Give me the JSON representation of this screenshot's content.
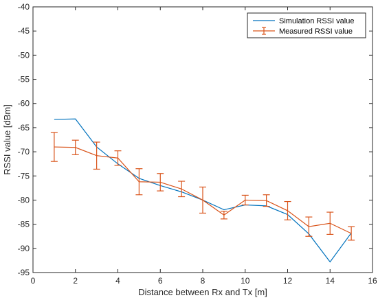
{
  "chart_data": {
    "type": "line",
    "title": "",
    "xlabel": "Distance between Rx and Tx [m]",
    "ylabel": "RSSI value [dBm]",
    "xlim": [
      0,
      16
    ],
    "ylim": [
      -95,
      -40
    ],
    "xticks": [
      0,
      2,
      4,
      6,
      8,
      10,
      12,
      14,
      16
    ],
    "yticks": [
      -95,
      -90,
      -85,
      -80,
      -75,
      -70,
      -65,
      -60,
      -55,
      -50,
      -45,
      -40
    ],
    "xtick_labels": [
      "0",
      "2",
      "4",
      "6",
      "8",
      "10",
      "12",
      "14",
      "16"
    ],
    "ytick_labels": [
      "-95",
      "-90",
      "-85",
      "-80",
      "-75",
      "-70",
      "-65",
      "-60",
      "-55",
      "-50",
      "-45",
      "-40"
    ],
    "grid": false,
    "legend_position": "top-right",
    "x": [
      1,
      2,
      3,
      4,
      5,
      6,
      7,
      8,
      9,
      10,
      11,
      12,
      13,
      14,
      15
    ],
    "series": [
      {
        "name": "Simulation RSSI value",
        "color": "#0072BD",
        "values": [
          -63.3,
          -63.2,
          -69.0,
          -72.5,
          -75.5,
          -77.0,
          -78.3,
          -80.0,
          -82.0,
          -81.0,
          -81.2,
          -83.0,
          -87.0,
          -92.8,
          -86.8
        ]
      },
      {
        "name": "Measured RSSI value",
        "color": "#D95319",
        "error_bars": true,
        "values": [
          -69.0,
          -69.1,
          -70.8,
          -71.3,
          -76.2,
          -76.3,
          -77.7,
          -80.0,
          -83.1,
          -80.0,
          -80.1,
          -82.2,
          -85.5,
          -84.8,
          -86.9
        ],
        "errors": [
          3.0,
          1.5,
          2.8,
          1.5,
          2.7,
          1.8,
          1.6,
          2.7,
          0.8,
          1.0,
          1.2,
          1.9,
          2.0,
          2.3,
          1.4
        ]
      }
    ]
  }
}
